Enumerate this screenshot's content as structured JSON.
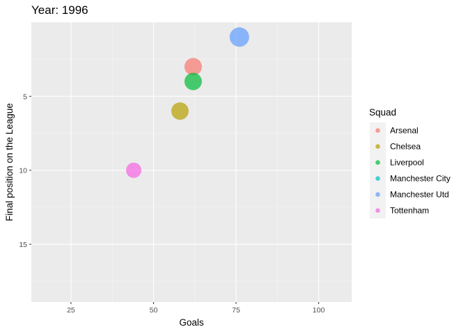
{
  "chart_data": {
    "type": "scatter",
    "title": "Year: 1996",
    "xlabel": "Goals",
    "ylabel": "Final position on the League",
    "xlim": [
      13,
      110
    ],
    "ylim": [
      18.9,
      0
    ],
    "y_reversed": true,
    "x_ticks": [
      25,
      50,
      75,
      100
    ],
    "y_ticks": [
      5,
      10,
      15
    ],
    "grid": true,
    "legend": {
      "title": "Squad",
      "placement": "right",
      "entries": [
        {
          "name": "Arsenal",
          "color": "#F8766D"
        },
        {
          "name": "Chelsea",
          "color": "#B79F00"
        },
        {
          "name": "Liverpool",
          "color": "#00BA38"
        },
        {
          "name": "Manchester City",
          "color": "#00BFC4"
        },
        {
          "name": "Manchester Utd",
          "color": "#619CFF"
        },
        {
          "name": "Tottenham",
          "color": "#F564E3"
        }
      ]
    },
    "points": [
      {
        "squad": "Manchester Utd",
        "x": 76,
        "y": 1,
        "size": "largest"
      },
      {
        "squad": "Arsenal",
        "x": 62,
        "y": 3
      },
      {
        "squad": "Liverpool",
        "x": 62,
        "y": 4
      },
      {
        "squad": "Chelsea",
        "x": 58,
        "y": 6
      },
      {
        "squad": "Tottenham",
        "x": 44,
        "y": 10,
        "size": "smallest"
      }
    ]
  },
  "colors": {
    "panel_background": "#EBEBEB",
    "grid_major": "#FFFFFF",
    "legend_key_background": "#F2F2F2"
  }
}
